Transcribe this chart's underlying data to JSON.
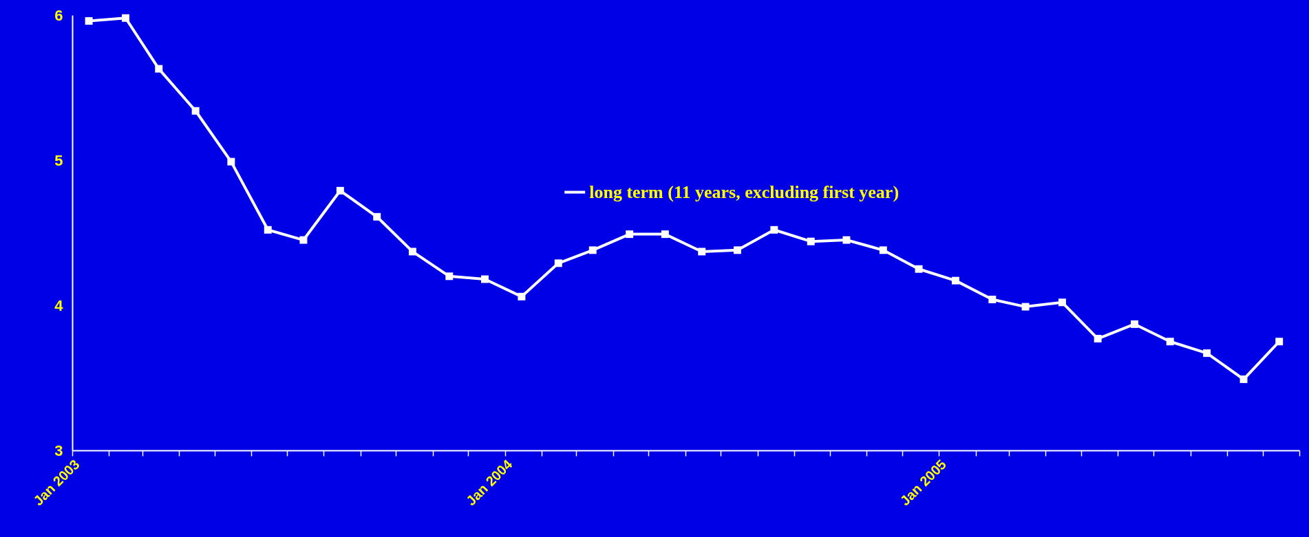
{
  "chart_data": {
    "type": "line",
    "x": [
      "2003-01-15",
      "2003-02-15",
      "2003-03-15",
      "2003-04-15",
      "2003-05-15",
      "2003-06-15",
      "2003-07-15",
      "2003-08-15",
      "2003-09-15",
      "2003-10-15",
      "2003-11-15",
      "2003-12-15",
      "2004-01-15",
      "2004-02-15",
      "2004-03-15",
      "2004-04-15",
      "2004-05-15",
      "2004-06-15",
      "2004-07-15",
      "2004-08-15",
      "2004-09-15",
      "2004-10-15",
      "2004-11-15",
      "2004-12-15",
      "2005-01-15",
      "2005-02-15",
      "2005-03-15",
      "2005-04-15",
      "2005-05-15",
      "2005-06-15",
      "2005-07-15",
      "2005-08-15",
      "2005-09-15",
      "2005-10-15"
    ],
    "series": [
      {
        "name": "long term (11 years, excluding first year)",
        "color": "#ffffff",
        "values": [
          5.96,
          5.98,
          5.63,
          5.34,
          4.99,
          4.52,
          4.45,
          4.79,
          4.61,
          4.37,
          4.2,
          4.18,
          4.06,
          4.29,
          4.38,
          4.49,
          4.49,
          4.37,
          4.38,
          4.52,
          4.44,
          4.45,
          4.38,
          4.25,
          4.17,
          4.04,
          3.99,
          4.02,
          3.77,
          3.87,
          3.75,
          3.67,
          3.49,
          3.75
        ]
      }
    ],
    "xlim": [
      "2003-01-01",
      "2005-11-01"
    ],
    "xticks": [
      {
        "value": "2003-01-01",
        "label": "Jan 2003"
      },
      {
        "value": "2003-02-01",
        "label": null
      },
      {
        "value": "2003-03-01",
        "label": null
      },
      {
        "value": "2003-04-01",
        "label": null
      },
      {
        "value": "2003-05-01",
        "label": null
      },
      {
        "value": "2003-06-01",
        "label": null
      },
      {
        "value": "2003-07-01",
        "label": null
      },
      {
        "value": "2003-08-01",
        "label": null
      },
      {
        "value": "2003-09-01",
        "label": null
      },
      {
        "value": "2003-10-01",
        "label": null
      },
      {
        "value": "2003-11-01",
        "label": null
      },
      {
        "value": "2003-12-01",
        "label": null
      },
      {
        "value": "2004-01-01",
        "label": "Jan 2004"
      },
      {
        "value": "2004-02-01",
        "label": null
      },
      {
        "value": "2004-03-01",
        "label": null
      },
      {
        "value": "2004-04-01",
        "label": null
      },
      {
        "value": "2004-05-01",
        "label": null
      },
      {
        "value": "2004-06-01",
        "label": null
      },
      {
        "value": "2004-07-01",
        "label": null
      },
      {
        "value": "2004-08-01",
        "label": null
      },
      {
        "value": "2004-09-01",
        "label": null
      },
      {
        "value": "2004-10-01",
        "label": null
      },
      {
        "value": "2004-11-01",
        "label": null
      },
      {
        "value": "2004-12-01",
        "label": null
      },
      {
        "value": "2005-01-01",
        "label": "Jan 2005"
      },
      {
        "value": "2005-02-01",
        "label": null
      },
      {
        "value": "2005-03-01",
        "label": null
      },
      {
        "value": "2005-04-01",
        "label": null
      },
      {
        "value": "2005-05-01",
        "label": null
      },
      {
        "value": "2005-06-01",
        "label": null
      },
      {
        "value": "2005-07-01",
        "label": null
      },
      {
        "value": "2005-08-01",
        "label": null
      },
      {
        "value": "2005-09-01",
        "label": null
      },
      {
        "value": "2005-10-01",
        "label": null
      },
      {
        "value": "2005-11-01",
        "label": null
      }
    ],
    "ylim": [
      3,
      6
    ],
    "yticks": [
      3,
      4,
      5,
      6
    ],
    "grid": false,
    "legend": "top",
    "marker": "square",
    "line_style": "solid"
  }
}
